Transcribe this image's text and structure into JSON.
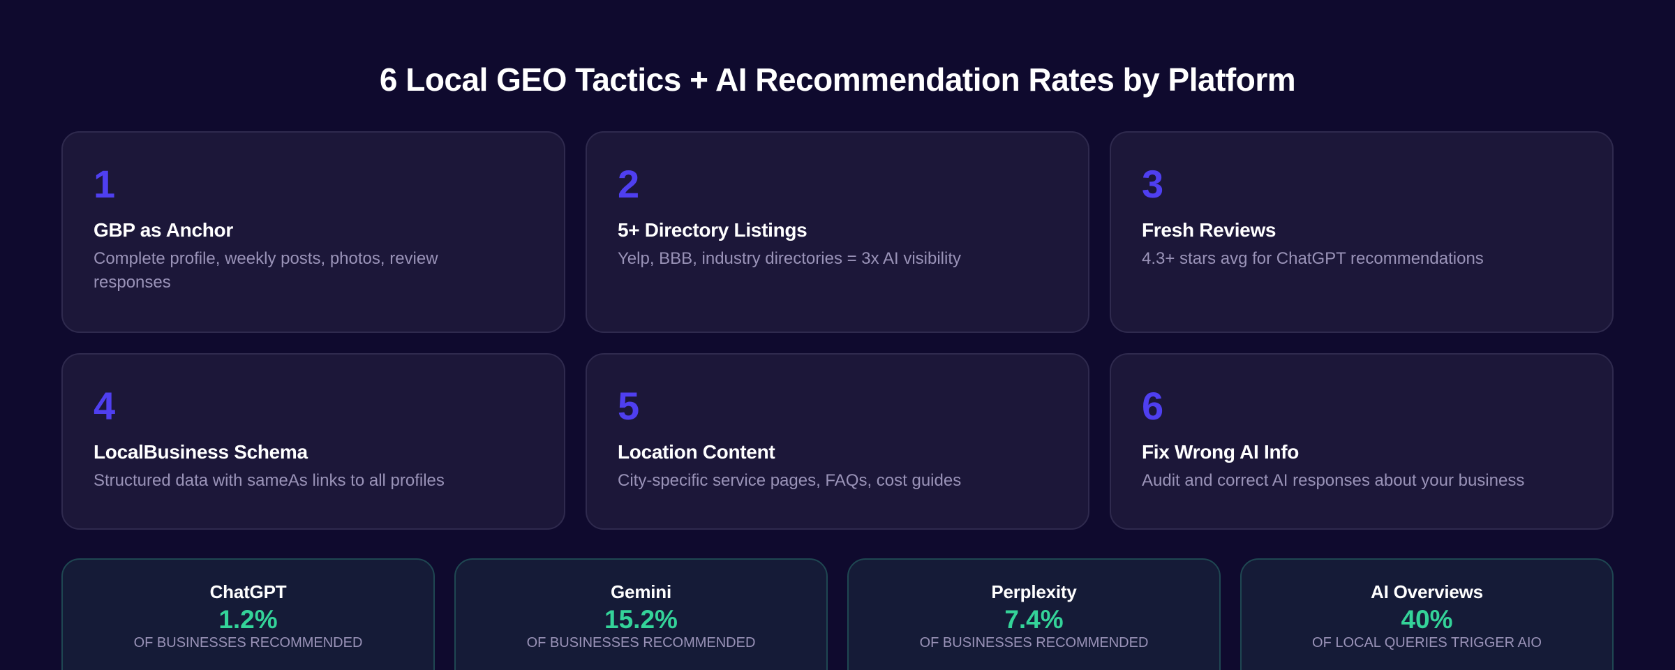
{
  "header": {
    "title": "6 Local GEO Tactics + AI Recommendation Rates by Platform"
  },
  "colors": {
    "background": "#0f0a2e",
    "card_background": "#1c1739",
    "accent_number": "#4f3ff0",
    "stat_value": "#34d399",
    "muted_text": "#9a93b8"
  },
  "tactics": [
    {
      "number": "1",
      "title": "GBP as Anchor",
      "description": "Complete profile, weekly posts, photos, review responses"
    },
    {
      "number": "2",
      "title": "5+ Directory Listings",
      "description": "Yelp, BBB, industry directories = 3x AI visibility"
    },
    {
      "number": "3",
      "title": "Fresh Reviews",
      "description": "4.3+ stars avg for ChatGPT recommendations"
    },
    {
      "number": "4",
      "title": "LocalBusiness Schema",
      "description": "Structured data with sameAs links to all profiles"
    },
    {
      "number": "5",
      "title": "Location Content",
      "description": "City-specific service pages, FAQs, cost guides"
    },
    {
      "number": "6",
      "title": "Fix Wrong AI Info",
      "description": "Audit and correct AI responses about your business"
    }
  ],
  "platforms": [
    {
      "name": "ChatGPT",
      "value": "1.2%",
      "caption": "of businesses recommended"
    },
    {
      "name": "Gemini",
      "value": "15.2%",
      "caption": "of businesses recommended"
    },
    {
      "name": "Perplexity",
      "value": "7.4%",
      "caption": "of businesses recommended"
    },
    {
      "name": "AI Overviews",
      "value": "40%",
      "caption": "of local queries trigger AIO"
    }
  ]
}
